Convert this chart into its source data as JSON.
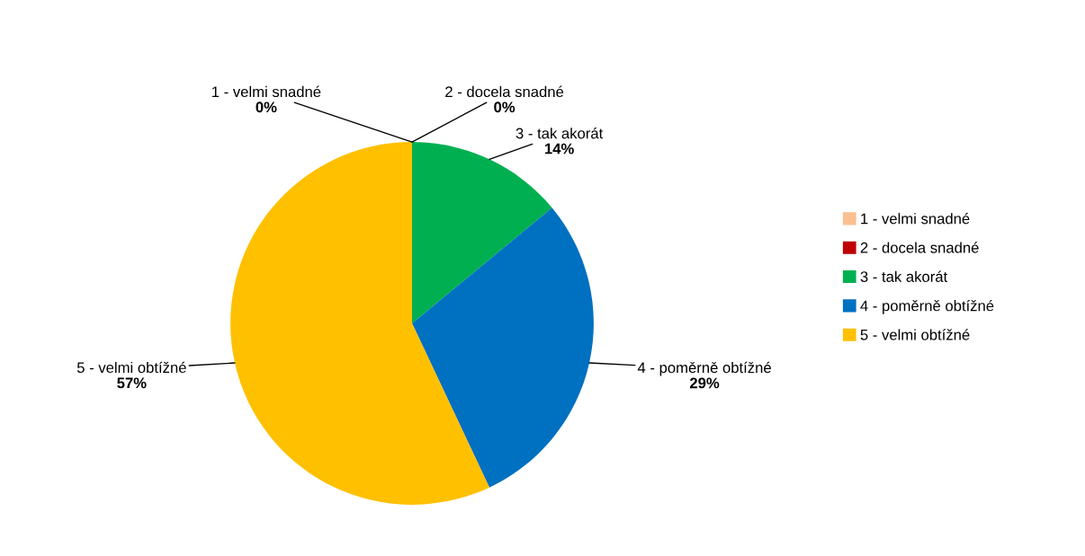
{
  "chart_data": {
    "type": "pie",
    "categories": [
      "1 - velmi snadné",
      "2 - docela snadné",
      "3 - tak akorát",
      "4 - poměrně obtížné",
      "5 - velmi obtížné"
    ],
    "values": [
      0,
      0,
      14,
      29,
      57
    ],
    "colors": [
      "#fac090",
      "#c00000",
      "#00b050",
      "#0070c0",
      "#ffc000"
    ],
    "value_labels": [
      "0%",
      "0%",
      "14%",
      "29%",
      "57%"
    ],
    "legend": "right"
  }
}
